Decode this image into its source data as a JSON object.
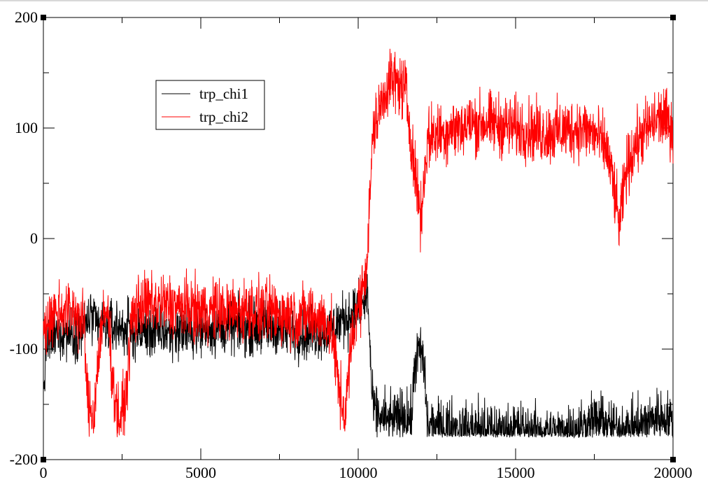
{
  "chart_data": {
    "type": "line",
    "title": "",
    "xlabel": "",
    "ylabel": "",
    "xlim": [
      0,
      20000
    ],
    "ylim": [
      -200,
      200
    ],
    "x_ticks": [
      "0",
      "5000",
      "10000",
      "15000",
      "20000"
    ],
    "y_ticks": [
      "-200",
      "-100",
      "0",
      "100",
      "200"
    ],
    "grid": false,
    "legend_position": "top-left",
    "series": [
      {
        "name": "trp_chi1",
        "color": "#000000",
        "noise": 12,
        "points": [
          [
            0,
            -140
          ],
          [
            100,
            -95
          ],
          [
            500,
            -85
          ],
          [
            1000,
            -85
          ],
          [
            1300,
            -80
          ],
          [
            1500,
            -70
          ],
          [
            1700,
            -80
          ],
          [
            2000,
            -80
          ],
          [
            2400,
            -80
          ],
          [
            2700,
            -82
          ],
          [
            3000,
            -85
          ],
          [
            4000,
            -85
          ],
          [
            5000,
            -82
          ],
          [
            6000,
            -80
          ],
          [
            7000,
            -80
          ],
          [
            8000,
            -85
          ],
          [
            9000,
            -85
          ],
          [
            9400,
            -75
          ],
          [
            9700,
            -70
          ],
          [
            10000,
            -65
          ],
          [
            10300,
            -50
          ],
          [
            10450,
            -150
          ],
          [
            10600,
            -160
          ],
          [
            11000,
            -165
          ],
          [
            11500,
            -160
          ],
          [
            11700,
            -165
          ],
          [
            11800,
            -110
          ],
          [
            12000,
            -100
          ],
          [
            12100,
            -120
          ],
          [
            12200,
            -170
          ],
          [
            12500,
            -170
          ],
          [
            13000,
            -170
          ],
          [
            14000,
            -172
          ],
          [
            15000,
            -172
          ],
          [
            16000,
            -175
          ],
          [
            17000,
            -172
          ],
          [
            17500,
            -165
          ],
          [
            17800,
            -165
          ],
          [
            18000,
            -172
          ],
          [
            19000,
            -170
          ],
          [
            19500,
            -160
          ],
          [
            20000,
            -165
          ]
        ]
      },
      {
        "name": "trp_chi2",
        "color": "#ff0000",
        "noise": 14,
        "points": [
          [
            0,
            -90
          ],
          [
            100,
            -75
          ],
          [
            500,
            -65
          ],
          [
            1000,
            -65
          ],
          [
            1300,
            -80
          ],
          [
            1400,
            -150
          ],
          [
            1600,
            -160
          ],
          [
            1800,
            -90
          ],
          [
            2000,
            -65
          ],
          [
            2100,
            -80
          ],
          [
            2200,
            -130
          ],
          [
            2400,
            -165
          ],
          [
            2600,
            -150
          ],
          [
            2800,
            -75
          ],
          [
            3000,
            -60
          ],
          [
            4000,
            -60
          ],
          [
            5000,
            -65
          ],
          [
            6000,
            -65
          ],
          [
            7000,
            -65
          ],
          [
            8000,
            -70
          ],
          [
            8500,
            -70
          ],
          [
            9000,
            -75
          ],
          [
            9200,
            -90
          ],
          [
            9400,
            -140
          ],
          [
            9600,
            -160
          ],
          [
            9700,
            -120
          ],
          [
            9900,
            -70
          ],
          [
            10100,
            -50
          ],
          [
            10300,
            -15
          ],
          [
            10400,
            60
          ],
          [
            10500,
            100
          ],
          [
            11000,
            145
          ],
          [
            11500,
            135
          ],
          [
            11800,
            60
          ],
          [
            12000,
            20
          ],
          [
            12200,
            90
          ],
          [
            13000,
            100
          ],
          [
            14000,
            105
          ],
          [
            15000,
            100
          ],
          [
            16000,
            95
          ],
          [
            17000,
            100
          ],
          [
            17500,
            95
          ],
          [
            17900,
            80
          ],
          [
            18100,
            50
          ],
          [
            18300,
            10
          ],
          [
            18500,
            60
          ],
          [
            18800,
            85
          ],
          [
            19200,
            100
          ],
          [
            19600,
            110
          ],
          [
            20000,
            100
          ]
        ]
      }
    ]
  }
}
